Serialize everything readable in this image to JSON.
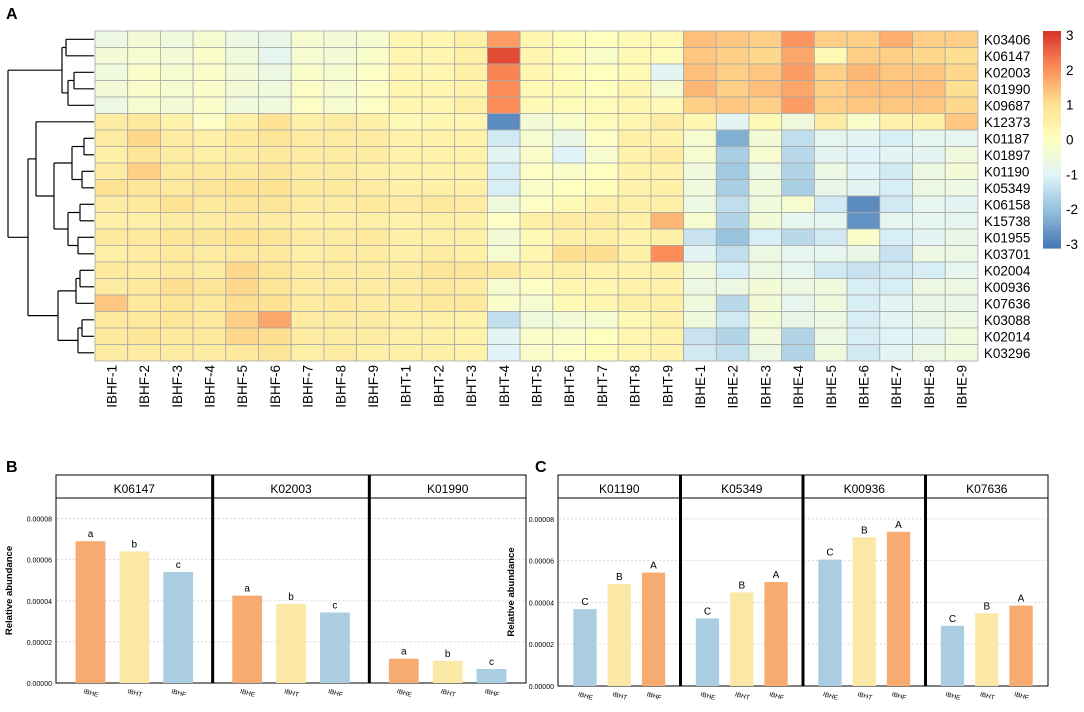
{
  "chart_data": [
    {
      "panel": "A",
      "type": "heatmap",
      "title": "",
      "columns": [
        "IBHF-1",
        "IBHF-2",
        "IBHF-3",
        "IBHF-4",
        "IBHF-5",
        "IBHF-6",
        "IBHF-7",
        "IBHF-8",
        "IBHF-9",
        "IBHT-1",
        "IBHT-2",
        "IBHT-3",
        "IBHT-4",
        "IBHT-5",
        "IBHT-6",
        "IBHT-7",
        "IBHT-8",
        "IBHT-9",
        "IBHE-1",
        "IBHE-2",
        "IBHE-3",
        "IBHE-4",
        "IBHE-5",
        "IBHE-6",
        "IBHE-7",
        "IBHE-8",
        "IBHE-9"
      ],
      "rows": [
        "K03406",
        "K06147",
        "K02003",
        "K01990",
        "K09687",
        "K12373",
        "K01187",
        "K01897",
        "K01190",
        "K05349",
        "K06158",
        "K15738",
        "K01955",
        "K03701",
        "K02004",
        "K00936",
        "K07636",
        "K03088",
        "K02014",
        "K03296"
      ],
      "values": [
        [
          -0.6,
          -0.4,
          -0.5,
          -0.3,
          -0.6,
          -0.7,
          -0.3,
          -0.4,
          -0.3,
          0.3,
          0.3,
          0.5,
          1.8,
          0.3,
          0.1,
          0,
          0.2,
          0.2,
          1.4,
          1.3,
          1.2,
          1.9,
          1.2,
          1.2,
          1.6,
          1.2,
          1.2
        ],
        [
          -0.4,
          -0.3,
          -0.4,
          -0.2,
          -0.5,
          -0.8,
          -0.3,
          -0.4,
          -0.2,
          0.3,
          0.3,
          0.5,
          2.7,
          0.3,
          0.1,
          -0.2,
          0.2,
          0.1,
          1.3,
          1.2,
          1.1,
          1.7,
          0.2,
          1.2,
          1.2,
          1.1,
          1.0
        ],
        [
          -0.5,
          -0.2,
          -0.3,
          -0.2,
          -0.4,
          -0.6,
          -0.2,
          -0.3,
          -0.1,
          0.3,
          0.3,
          0.5,
          2.1,
          0.3,
          0.1,
          0,
          0.2,
          -0.9,
          1.4,
          1.2,
          1.3,
          1.8,
          1.2,
          1.5,
          1.3,
          1.3,
          1.1
        ],
        [
          -0.4,
          -0.2,
          -0.3,
          -0.2,
          -0.4,
          -0.5,
          -0.1,
          -0.3,
          -0.1,
          0.3,
          0.3,
          0.4,
          2.0,
          0.2,
          0.2,
          0,
          0.3,
          -0.3,
          1.5,
          1.2,
          1.4,
          1.7,
          1.2,
          1.4,
          1.4,
          1.4,
          1.0
        ],
        [
          -0.6,
          -0.3,
          -0.4,
          -0.2,
          -0.5,
          -0.5,
          -0.1,
          -0.3,
          -0.1,
          0.3,
          0.3,
          0.5,
          2.0,
          0.2,
          0.1,
          0.1,
          0.3,
          0.2,
          1.2,
          1.3,
          1.2,
          1.8,
          1.2,
          1.3,
          1.3,
          1.3,
          1.1
        ],
        [
          0.6,
          0.7,
          0.4,
          -0.1,
          0.5,
          0.9,
          0.5,
          0.6,
          0.5,
          0.2,
          0.3,
          0.3,
          -2.7,
          -0.4,
          -0.2,
          0.1,
          0.3,
          0.6,
          0.3,
          -0.9,
          0.2,
          -0.5,
          0.6,
          -0.2,
          0.4,
          0.5,
          1.3
        ],
        [
          0.6,
          1.1,
          0.6,
          0.5,
          0.7,
          0.8,
          0.6,
          0.6,
          0.6,
          0.4,
          0.4,
          0.4,
          -1.2,
          -0.3,
          -0.7,
          -0.1,
          0.5,
          0.4,
          -0.3,
          -2.2,
          -0.4,
          -1.4,
          -0.8,
          -0.9,
          -1.1,
          -0.8,
          -0.8
        ],
        [
          0.5,
          0.8,
          0.6,
          0.5,
          0.6,
          0.7,
          0.6,
          0.6,
          0.6,
          0.4,
          0.4,
          0.4,
          -0.9,
          -0.2,
          -1.0,
          -0.3,
          0.4,
          0.6,
          -0.3,
          -1.7,
          -0.3,
          -1.5,
          -0.9,
          -1.0,
          -0.9,
          -0.9,
          -0.5
        ],
        [
          0.6,
          1.2,
          0.7,
          0.7,
          0.7,
          0.8,
          0.6,
          0.6,
          0.5,
          0.4,
          0.4,
          0.4,
          -1.1,
          -0.1,
          -0.2,
          0,
          0.4,
          0.4,
          -0.5,
          -1.8,
          -0.6,
          -1.6,
          -0.6,
          -1.0,
          -1.2,
          -0.6,
          -0.4
        ],
        [
          0.9,
          0.8,
          0.7,
          0.8,
          0.9,
          0.9,
          0.7,
          0.7,
          0.6,
          0.5,
          0.5,
          0.5,
          -1.1,
          -0.2,
          0,
          0.1,
          0.4,
          0.5,
          -0.5,
          -1.7,
          -0.5,
          -1.7,
          -0.7,
          -0.9,
          -1.1,
          -0.6,
          -0.6
        ]
      ],
      "values_cont": [
        [
          0.6,
          0.7,
          0.9,
          0.7,
          0.8,
          0.8,
          0.6,
          0.6,
          0.7,
          0.6,
          0.7,
          0.6,
          -0.5,
          -0.1,
          0.2,
          0.4,
          0.5,
          0.5,
          -0.6,
          -1.4,
          -0.5,
          -0.3,
          -1.2,
          -2.7,
          -1.2,
          -0.8,
          -0.9
        ],
        [
          0.5,
          0.5,
          0.6,
          0.6,
          0.7,
          0.6,
          0.5,
          0.5,
          0.5,
          0.4,
          0.5,
          0.5,
          -0.1,
          0.5,
          0.6,
          0.6,
          0.5,
          1.5,
          -0.3,
          -1.6,
          -0.4,
          -0.8,
          -0.8,
          -2.6,
          -0.8,
          -0.8,
          -0.8
        ],
        [
          0.7,
          0.7,
          0.8,
          0.8,
          0.9,
          0.8,
          0.6,
          0.6,
          0.7,
          0.5,
          0.5,
          0.5,
          -0.4,
          0.2,
          0.5,
          0.5,
          0.4,
          0.5,
          -1.3,
          -1.9,
          -1.1,
          -1.5,
          -1.2,
          -0.2,
          -1.1,
          -0.9,
          -0.7
        ],
        [
          0.5,
          0.6,
          0.7,
          0.6,
          0.7,
          0.7,
          0.5,
          0.6,
          0.6,
          0.5,
          0.6,
          0.5,
          -0.3,
          0.3,
          1.0,
          1.0,
          0.5,
          2.0,
          -0.9,
          -1.4,
          -0.6,
          -0.8,
          -0.8,
          -0.7,
          -1.3,
          -0.6,
          -0.6
        ],
        [
          0.7,
          0.6,
          0.7,
          0.6,
          1.1,
          0.8,
          0.6,
          0.6,
          0.6,
          0.6,
          0.8,
          0.8,
          0.7,
          0.4,
          0.5,
          0.4,
          0.4,
          0.5,
          -0.5,
          -1.1,
          -0.6,
          -0.8,
          -1.2,
          -1.3,
          -1.2,
          -1.1,
          -0.8
        ],
        [
          0.6,
          0.7,
          1.0,
          0.8,
          1.1,
          0.8,
          0.6,
          0.6,
          0.6,
          0.6,
          0.7,
          0.6,
          -0.3,
          -0.1,
          0.3,
          0.3,
          0.4,
          0.4,
          -0.6,
          -0.6,
          -0.4,
          -0.6,
          -0.5,
          -1.1,
          -1.1,
          -0.6,
          -0.6
        ],
        [
          1.3,
          0.7,
          0.8,
          0.7,
          1.0,
          0.9,
          0.6,
          0.7,
          0.6,
          0.6,
          0.7,
          0.7,
          -0.2,
          -0.3,
          0.2,
          0.3,
          0.5,
          0.5,
          -0.5,
          -1.5,
          -0.4,
          -0.8,
          -0.5,
          -1.1,
          -0.9,
          -0.7,
          -0.7
        ],
        [
          0.7,
          0.7,
          0.8,
          0.7,
          1.2,
          1.7,
          0.6,
          0.6,
          0.6,
          0.5,
          0.5,
          0.4,
          -1.4,
          -0.5,
          -0.4,
          -0.3,
          0.2,
          0.4,
          -0.5,
          -1.2,
          -0.4,
          -0.7,
          -0.6,
          -1.1,
          -0.9,
          -0.7,
          -0.6
        ],
        [
          0.7,
          0.8,
          0.7,
          0.7,
          1.1,
          1.0,
          0.6,
          0.6,
          0.6,
          0.5,
          0.5,
          0.4,
          -0.9,
          -0.2,
          -0.2,
          0,
          0.3,
          0.4,
          -1.3,
          -1.6,
          -0.5,
          -1.6,
          -0.6,
          -1.1,
          -1.0,
          -0.9,
          -0.5
        ],
        [
          0.6,
          0.6,
          0.6,
          0.6,
          0.7,
          0.8,
          0.5,
          0.6,
          0.5,
          0.5,
          0.5,
          0.4,
          -1.0,
          -0.2,
          -0.1,
          0.1,
          0.3,
          0.4,
          -1.2,
          -1.4,
          -0.6,
          -1.6,
          -0.5,
          -1.2,
          -0.9,
          -0.6,
          -0.5
        ]
      ],
      "colorbar": {
        "min": -3,
        "max": 3,
        "ticks": [
          "3",
          "2",
          "1",
          "0",
          "-1",
          "-2",
          "-3"
        ],
        "low_color": "#4575b4",
        "mid_color": "#ffffbf",
        "high_color": "#d73027"
      },
      "dendrogram": "row clustering"
    },
    {
      "panel": "B",
      "type": "bar",
      "ylabel": "Relative abundance",
      "ylim": [
        0,
        9e-05
      ],
      "yticks": [
        "0.00000",
        "0.00002",
        "0.00004",
        "0.00006",
        "0.00008"
      ],
      "categories": [
        "IBHE",
        "IBHT",
        "IBHF"
      ],
      "facets": [
        {
          "title": "K06147",
          "values": [
            6.9e-05,
            6.4e-05,
            5.4e-05
          ],
          "letters": [
            "a",
            "b",
            "c"
          ]
        },
        {
          "title": "K02003",
          "values": [
            4.25e-05,
            3.85e-05,
            3.43e-05
          ],
          "letters": [
            "a",
            "b",
            "c"
          ]
        },
        {
          "title": "K01990",
          "values": [
            1.18e-05,
            1.08e-05,
            6.8e-06
          ],
          "letters": [
            "a",
            "b",
            "c"
          ]
        }
      ],
      "bar_colors": [
        "#f7ab70",
        "#fce8a6",
        "#abcde1"
      ]
    },
    {
      "panel": "C",
      "type": "bar",
      "ylabel": "Relative abundance",
      "ylim": [
        0,
        9e-05
      ],
      "yticks": [
        "0.00000",
        "0.00002",
        "0.00004",
        "0.00006",
        "0.00008"
      ],
      "categories": [
        "IBHE",
        "IBHT",
        "IBHF"
      ],
      "facets": [
        {
          "title": "K01190",
          "values": [
            3.68e-05,
            4.88e-05,
            5.43e-05
          ],
          "letters": [
            "C",
            "B",
            "A"
          ]
        },
        {
          "title": "K05349",
          "values": [
            3.23e-05,
            4.48e-05,
            4.98e-05
          ],
          "letters": [
            "C",
            "B",
            "A"
          ]
        },
        {
          "title": "K00936",
          "values": [
            6.05e-05,
            7.12e-05,
            7.38e-05
          ],
          "letters": [
            "C",
            "B",
            "A"
          ]
        },
        {
          "title": "K07636",
          "values": [
            2.88e-05,
            3.48e-05,
            3.85e-05
          ],
          "letters": [
            "C",
            "B",
            "A"
          ]
        }
      ],
      "bar_colors": [
        "#abcde1",
        "#fce8a6",
        "#f7ab70"
      ]
    }
  ],
  "panel_labels": [
    "A",
    "B",
    "C"
  ]
}
